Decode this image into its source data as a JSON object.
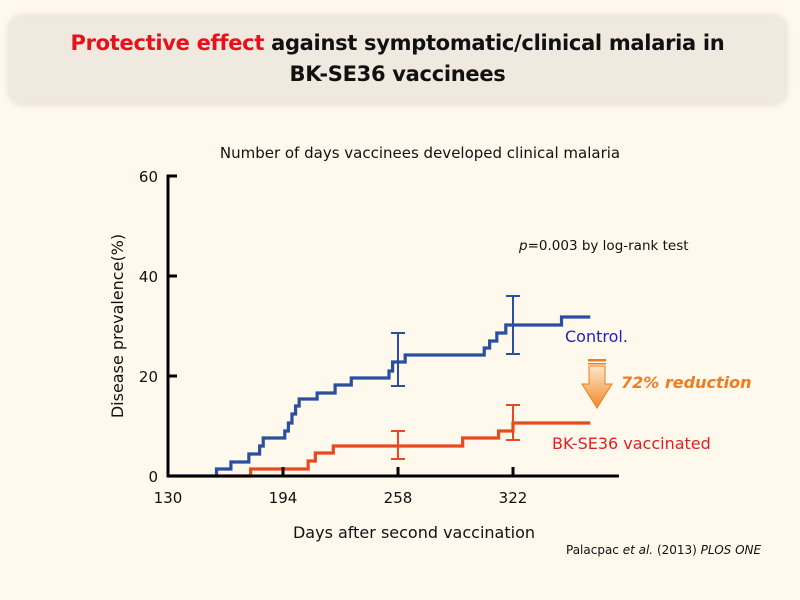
{
  "slide": {
    "title_highlight": "Protective effect",
    "title_rest_line1": " against symptomatic/clinical malaria in",
    "title_line2": "BK-SE36 vaccinees",
    "colors": {
      "title_highlight": "#e8101a",
      "control": "#2a4fa0",
      "vaccinated": "#e64a1e",
      "reduction": "#ee7d1f",
      "background": "#fff8ec"
    }
  },
  "chart_data": {
    "type": "line",
    "step": true,
    "title": "Number of days vaccinees developed clinical malaria",
    "xlabel": "Days after second vaccination",
    "ylabel": "Disease prevalence(%)",
    "xlim": [
      130,
      381
    ],
    "ylim": [
      0,
      60
    ],
    "xticks": [
      130,
      194,
      258,
      322
    ],
    "yticks": [
      0,
      20,
      40,
      60
    ],
    "grid": false,
    "series": [
      {
        "name": "Control.",
        "color": "#2a4fa0",
        "x": [
          130,
          157,
          165,
          175,
          181,
          183,
          195,
          197,
          199,
          201,
          203,
          213,
          223,
          232,
          253,
          255,
          262,
          306,
          309,
          313,
          318,
          349,
          365
        ],
        "y": [
          0,
          1.4,
          2.8,
          4.4,
          6.0,
          7.6,
          9.0,
          10.6,
          12.4,
          14.0,
          15.4,
          16.6,
          18.2,
          19.6,
          21.0,
          22.8,
          24.2,
          25.6,
          27.0,
          28.6,
          30.2,
          31.8,
          31.8
        ],
        "error_bars": [
          {
            "x": 258,
            "y": 24.2,
            "low": 18.0,
            "high": 28.6
          },
          {
            "x": 322,
            "y": 30.2,
            "low": 24.4,
            "high": 36.0
          }
        ]
      },
      {
        "name": "BK-SE36 vaccinated",
        "color": "#e64a1e",
        "x": [
          157,
          176,
          208,
          212,
          222,
          294,
          314,
          322,
          365
        ],
        "y": [
          0,
          1.4,
          3.0,
          4.6,
          6.0,
          7.6,
          9.0,
          10.6,
          10.6
        ],
        "error_bars": [
          {
            "x": 258,
            "y": 6.0,
            "low": 3.4,
            "high": 9.0
          },
          {
            "x": 322,
            "y": 10.6,
            "low": 7.2,
            "high": 14.2
          }
        ]
      }
    ],
    "annotations": {
      "p_value_prefix": "p",
      "p_value_rest": "=0.003 by log-rank test",
      "reduction": "72% reduction",
      "citation_author": "Palacpac ",
      "citation_etal": "et al.",
      "citation_year": " (2013) ",
      "citation_journal": "PLOS ONE"
    }
  }
}
